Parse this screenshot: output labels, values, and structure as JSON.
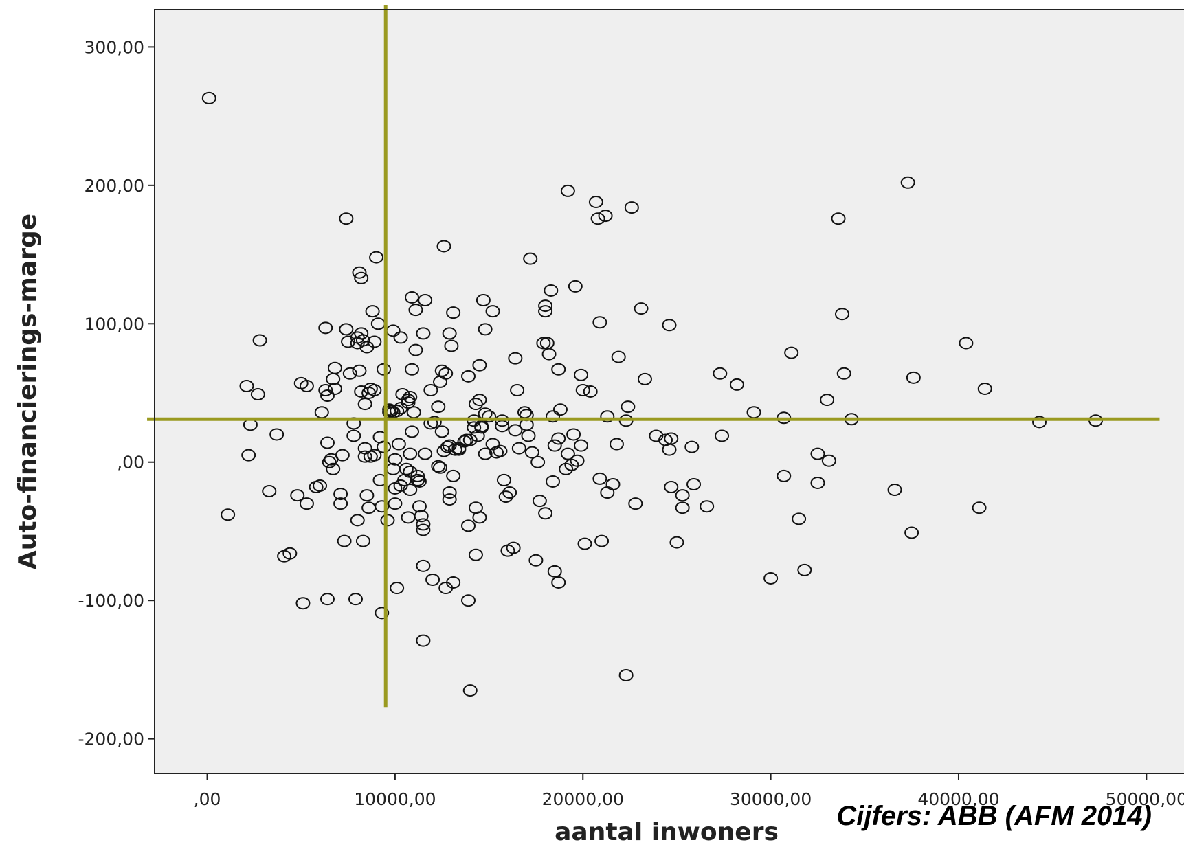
{
  "chart_data": {
    "type": "scatter",
    "xlabel": "aantal inwoners",
    "ylabel": "Auto-financierings-marge",
    "source": "Cijfers: ABB (AFM 2014)",
    "xlim": [
      -2800,
      52000
    ],
    "ylim": [
      -225,
      327
    ],
    "x_ticks": [
      0,
      10000,
      20000,
      30000,
      40000,
      50000
    ],
    "x_tick_labels": [
      ",00",
      "10000,00",
      "20000,00",
      "30000,00",
      "40000,00",
      "50000,00"
    ],
    "y_ticks": [
      300,
      200,
      100,
      0,
      -100,
      -200
    ],
    "y_tick_labels": [
      "300,00",
      "200,00",
      "100,00",
      ",00",
      "-100,00",
      "-200,00"
    ],
    "grid": false,
    "colors": {
      "plot_background": "#efefef",
      "marker": "#111111",
      "reference_line": "#9a9a20"
    },
    "reference_lines": [
      {
        "orientation": "vertical",
        "x": 9500,
        "y_from": -177,
        "y_to": 330
      },
      {
        "orientation": "horizontal",
        "y": 31,
        "x_from": -3200,
        "x_to": 50700
      }
    ],
    "points": [
      [
        100,
        263
      ],
      [
        1100,
        -38
      ],
      [
        2100,
        55
      ],
      [
        2200,
        5
      ],
      [
        2300,
        27
      ],
      [
        2700,
        49
      ],
      [
        2800,
        88
      ],
      [
        3300,
        -21
      ],
      [
        3700,
        20
      ],
      [
        4100,
        -68
      ],
      [
        4400,
        -66
      ],
      [
        4800,
        -24
      ],
      [
        5000,
        57
      ],
      [
        5100,
        -102
      ],
      [
        5300,
        55
      ],
      [
        5300,
        -30
      ],
      [
        5800,
        -18
      ],
      [
        6000,
        -17
      ],
      [
        6100,
        36
      ],
      [
        6300,
        52
      ],
      [
        6300,
        97
      ],
      [
        6400,
        14
      ],
      [
        6400,
        -99
      ],
      [
        6400,
        48
      ],
      [
        6500,
        0
      ],
      [
        6600,
        2
      ],
      [
        6700,
        60
      ],
      [
        6700,
        -5
      ],
      [
        6800,
        68
      ],
      [
        6800,
        53
      ],
      [
        7100,
        -30
      ],
      [
        7100,
        -23
      ],
      [
        7200,
        5
      ],
      [
        7300,
        -57
      ],
      [
        7400,
        176
      ],
      [
        7400,
        96
      ],
      [
        7500,
        87
      ],
      [
        7600,
        64
      ],
      [
        7800,
        28
      ],
      [
        7800,
        19
      ],
      [
        7900,
        -99
      ],
      [
        8000,
        90
      ],
      [
        8000,
        86
      ],
      [
        8000,
        -42
      ],
      [
        8100,
        66
      ],
      [
        8100,
        137
      ],
      [
        8200,
        51
      ],
      [
        8200,
        133
      ],
      [
        8200,
        93
      ],
      [
        8300,
        88
      ],
      [
        8300,
        -57
      ],
      [
        8400,
        42
      ],
      [
        8400,
        10
      ],
      [
        8400,
        4
      ],
      [
        8500,
        -24
      ],
      [
        8500,
        83
      ],
      [
        8600,
        -33
      ],
      [
        8600,
        50
      ],
      [
        8700,
        4
      ],
      [
        8700,
        53
      ],
      [
        8800,
        109
      ],
      [
        8900,
        87
      ],
      [
        8900,
        52
      ],
      [
        8900,
        5
      ],
      [
        9000,
        148
      ],
      [
        9100,
        100
      ],
      [
        9200,
        18
      ],
      [
        9200,
        -13
      ],
      [
        9300,
        -109
      ],
      [
        9300,
        -32
      ],
      [
        9400,
        11
      ],
      [
        9400,
        67
      ],
      [
        9600,
        -42
      ],
      [
        9700,
        36
      ],
      [
        9700,
        38
      ],
      [
        9800,
        37
      ],
      [
        9900,
        95
      ],
      [
        9900,
        36
      ],
      [
        9900,
        -5
      ],
      [
        10000,
        2
      ],
      [
        10000,
        -19
      ],
      [
        10000,
        -30
      ],
      [
        10100,
        37
      ],
      [
        10100,
        -91
      ],
      [
        10200,
        13
      ],
      [
        10300,
        39
      ],
      [
        10300,
        90
      ],
      [
        10300,
        -17
      ],
      [
        10400,
        49
      ],
      [
        10500,
        -13
      ],
      [
        10600,
        -5
      ],
      [
        10700,
        45
      ],
      [
        10700,
        43
      ],
      [
        10700,
        -40
      ],
      [
        10800,
        47
      ],
      [
        10800,
        6
      ],
      [
        10800,
        -20
      ],
      [
        10800,
        -7
      ],
      [
        10900,
        119
      ],
      [
        10900,
        67
      ],
      [
        10900,
        22
      ],
      [
        11000,
        36
      ],
      [
        11100,
        110
      ],
      [
        11100,
        81
      ],
      [
        11200,
        -10
      ],
      [
        11200,
        -13
      ],
      [
        11300,
        -14
      ],
      [
        11300,
        -32
      ],
      [
        11400,
        -39
      ],
      [
        11500,
        -45
      ],
      [
        11500,
        -49
      ],
      [
        11500,
        93
      ],
      [
        11500,
        -75
      ],
      [
        11500,
        -129
      ],
      [
        11600,
        117
      ],
      [
        11600,
        6
      ],
      [
        11900,
        52
      ],
      [
        11900,
        28
      ],
      [
        12000,
        -85
      ],
      [
        12100,
        29
      ],
      [
        12300,
        40
      ],
      [
        12300,
        -3
      ],
      [
        12400,
        -4
      ],
      [
        12400,
        58
      ],
      [
        12500,
        22
      ],
      [
        12500,
        66
      ],
      [
        12600,
        156
      ],
      [
        12600,
        8
      ],
      [
        12700,
        64
      ],
      [
        12700,
        -91
      ],
      [
        12800,
        11
      ],
      [
        12900,
        12
      ],
      [
        12900,
        93
      ],
      [
        12900,
        -22
      ],
      [
        12900,
        -27
      ],
      [
        13000,
        84
      ],
      [
        13100,
        108
      ],
      [
        13100,
        -10
      ],
      [
        13100,
        -87
      ],
      [
        13200,
        9
      ],
      [
        13400,
        9
      ],
      [
        13400,
        10
      ],
      [
        13700,
        15
      ],
      [
        13800,
        16
      ],
      [
        13900,
        -100
      ],
      [
        13900,
        -46
      ],
      [
        13900,
        62
      ],
      [
        14000,
        16
      ],
      [
        14000,
        -165
      ],
      [
        14200,
        30
      ],
      [
        14200,
        25
      ],
      [
        14300,
        42
      ],
      [
        14300,
        -33
      ],
      [
        14300,
        -67
      ],
      [
        14400,
        19
      ],
      [
        14500,
        45
      ],
      [
        14500,
        -40
      ],
      [
        14500,
        70
      ],
      [
        14600,
        25
      ],
      [
        14600,
        26
      ],
      [
        14700,
        117
      ],
      [
        14800,
        96
      ],
      [
        14800,
        35
      ],
      [
        14800,
        6
      ],
      [
        15000,
        33
      ],
      [
        15200,
        109
      ],
      [
        15200,
        13
      ],
      [
        15400,
        7
      ],
      [
        15600,
        8
      ],
      [
        15700,
        26
      ],
      [
        15700,
        30
      ],
      [
        15800,
        -13
      ],
      [
        15900,
        -25
      ],
      [
        16000,
        -64
      ],
      [
        16100,
        -22
      ],
      [
        16300,
        -62
      ],
      [
        16400,
        23
      ],
      [
        16400,
        75
      ],
      [
        16500,
        52
      ],
      [
        16600,
        10
      ],
      [
        16900,
        36
      ],
      [
        17000,
        34
      ],
      [
        17000,
        27
      ],
      [
        17100,
        19
      ],
      [
        17200,
        147
      ],
      [
        17300,
        7
      ],
      [
        17500,
        -71
      ],
      [
        17600,
        0
      ],
      [
        17700,
        -28
      ],
      [
        17900,
        86
      ],
      [
        18000,
        -37
      ],
      [
        18000,
        113
      ],
      [
        18000,
        109
      ],
      [
        18100,
        86
      ],
      [
        18200,
        78
      ],
      [
        18300,
        124
      ],
      [
        18400,
        -14
      ],
      [
        18400,
        33
      ],
      [
        18500,
        12
      ],
      [
        18500,
        -79
      ],
      [
        18700,
        67
      ],
      [
        18700,
        -87
      ],
      [
        18700,
        17
      ],
      [
        18800,
        38
      ],
      [
        19100,
        -5
      ],
      [
        19200,
        196
      ],
      [
        19200,
        6
      ],
      [
        19400,
        -2
      ],
      [
        19500,
        20
      ],
      [
        19600,
        127
      ],
      [
        19700,
        1
      ],
      [
        19900,
        63
      ],
      [
        19900,
        12
      ],
      [
        20000,
        52
      ],
      [
        20100,
        -59
      ],
      [
        20400,
        51
      ],
      [
        20700,
        188
      ],
      [
        20800,
        176
      ],
      [
        20900,
        101
      ],
      [
        20900,
        -12
      ],
      [
        21000,
        -57
      ],
      [
        21200,
        178
      ],
      [
        21300,
        33
      ],
      [
        21300,
        -22
      ],
      [
        21600,
        -16
      ],
      [
        21800,
        13
      ],
      [
        21900,
        76
      ],
      [
        22300,
        -154
      ],
      [
        22300,
        30
      ],
      [
        22400,
        40
      ],
      [
        22600,
        184
      ],
      [
        22800,
        -30
      ],
      [
        23100,
        111
      ],
      [
        23300,
        60
      ],
      [
        23900,
        19
      ],
      [
        24400,
        16
      ],
      [
        24600,
        99
      ],
      [
        24600,
        9
      ],
      [
        24700,
        17
      ],
      [
        24700,
        -18
      ],
      [
        25000,
        -58
      ],
      [
        25300,
        -33
      ],
      [
        25300,
        -24
      ],
      [
        25800,
        11
      ],
      [
        25900,
        -16
      ],
      [
        26600,
        -32
      ],
      [
        27300,
        64
      ],
      [
        27400,
        19
      ],
      [
        28200,
        56
      ],
      [
        29100,
        36
      ],
      [
        30000,
        -84
      ],
      [
        30700,
        -10
      ],
      [
        30700,
        32
      ],
      [
        31100,
        79
      ],
      [
        31500,
        -41
      ],
      [
        31800,
        -78
      ],
      [
        32500,
        6
      ],
      [
        32500,
        -15
      ],
      [
        33000,
        45
      ],
      [
        33100,
        1
      ],
      [
        33600,
        176
      ],
      [
        33800,
        107
      ],
      [
        33900,
        64
      ],
      [
        34300,
        31
      ],
      [
        36600,
        -20
      ],
      [
        37300,
        202
      ],
      [
        37500,
        -51
      ],
      [
        37600,
        61
      ],
      [
        40400,
        86
      ],
      [
        41100,
        -33
      ],
      [
        41400,
        53
      ],
      [
        44300,
        29
      ],
      [
        47300,
        30
      ]
    ]
  }
}
